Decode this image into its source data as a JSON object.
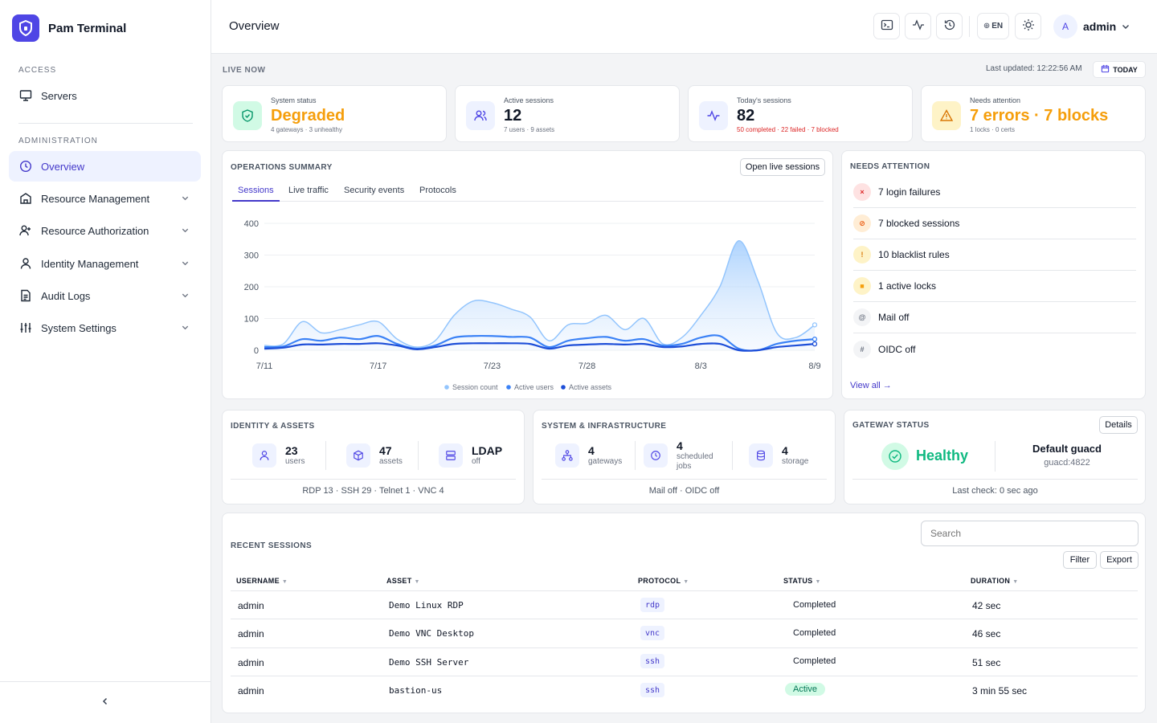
{
  "app": {
    "name": "Pam Terminal"
  },
  "sidebar": {
    "access_label": "ACCESS",
    "admin_label": "ADMINISTRATION",
    "access_items": [
      {
        "label": "Servers",
        "icon": "monitor-icon"
      }
    ],
    "admin_items": [
      {
        "label": "Overview",
        "icon": "clock-icon",
        "active": true
      },
      {
        "label": "Resource Management",
        "icon": "building-icon"
      },
      {
        "label": "Resource Authorization",
        "icon": "user-plus-icon"
      },
      {
        "label": "Identity Management",
        "icon": "user-icon"
      },
      {
        "label": "Audit Logs",
        "icon": "document-icon"
      },
      {
        "label": "System Settings",
        "icon": "sliders-icon"
      }
    ]
  },
  "header": {
    "title": "Overview",
    "lang": "EN",
    "user_initial": "A",
    "user_name": "admin"
  },
  "live": {
    "label": "LIVE NOW",
    "last_updated": "Last updated: 12:22:56 AM",
    "today": "TODAY"
  },
  "stats": [
    {
      "label": "System status",
      "value": "Degraded",
      "sub": "4 gateways · 3 unhealthy"
    },
    {
      "label": "Active sessions",
      "value": "12",
      "sub": "7 users · 9 assets"
    },
    {
      "label": "Today's sessions",
      "value": "82",
      "sub": "50 completed · 22 failed · 7 blocked"
    },
    {
      "label": "Needs attention",
      "value": "7 errors · 7 blocks",
      "sub": "1 locks · 0 certs"
    }
  ],
  "ops": {
    "title": "OPERATIONS SUMMARY",
    "open_btn": "Open live sessions",
    "tabs": [
      "Sessions",
      "Live traffic",
      "Security events",
      "Protocols"
    ]
  },
  "chart_data": {
    "type": "area",
    "title": "",
    "ylim": [
      0,
      400
    ],
    "yticks": [
      "0",
      "100",
      "200",
      "300",
      "400"
    ],
    "xticks": [
      "7/11",
      "7/17",
      "7/23",
      "7/28",
      "8/3",
      "8/9"
    ],
    "x": [
      "7/11",
      "7/12",
      "7/13",
      "7/14",
      "7/15",
      "7/16",
      "7/17",
      "7/18",
      "7/19",
      "7/20",
      "7/21",
      "7/22",
      "7/23",
      "7/24",
      "7/25",
      "7/26",
      "7/27",
      "7/28",
      "7/29",
      "7/30",
      "7/31",
      "8/1",
      "8/2",
      "8/3",
      "8/4",
      "8/5",
      "8/6",
      "8/7",
      "8/8",
      "8/9"
    ],
    "series": [
      {
        "name": "Session count",
        "color": "#93c5fd",
        "values": [
          15,
          20,
          90,
          55,
          65,
          80,
          90,
          35,
          10,
          30,
          110,
          155,
          150,
          130,
          105,
          30,
          80,
          85,
          110,
          65,
          100,
          20,
          40,
          110,
          200,
          345,
          220,
          55,
          40,
          80
        ]
      },
      {
        "name": "Active users",
        "color": "#3b82f6",
        "values": [
          10,
          12,
          35,
          30,
          40,
          35,
          45,
          20,
          5,
          15,
          40,
          45,
          45,
          42,
          40,
          10,
          30,
          38,
          42,
          30,
          35,
          15,
          20,
          40,
          45,
          5,
          0,
          20,
          30,
          35
        ]
      },
      {
        "name": "Active assets",
        "color": "#1d4ed8",
        "values": [
          5,
          8,
          18,
          18,
          20,
          20,
          22,
          15,
          3,
          10,
          20,
          22,
          22,
          22,
          20,
          5,
          15,
          18,
          20,
          18,
          20,
          10,
          12,
          20,
          20,
          0,
          0,
          10,
          15,
          20
        ]
      }
    ]
  },
  "attention": {
    "title": "NEEDS ATTENTION",
    "items": [
      {
        "text": "7 login failures",
        "mark": "×",
        "tone": "red"
      },
      {
        "text": "7 blocked sessions",
        "mark": "⊘",
        "tone": "orange"
      },
      {
        "text": "10 blacklist rules",
        "mark": "!",
        "tone": "amber"
      },
      {
        "text": "1 active locks",
        "mark": "■",
        "tone": "amber"
      },
      {
        "text": "Mail off",
        "mark": "@",
        "tone": "gray"
      },
      {
        "text": "OIDC off",
        "mark": "#",
        "tone": "gray"
      }
    ],
    "view_all": "View all →"
  },
  "identity": {
    "title": "IDENTITY & ASSETS",
    "items": [
      {
        "value": "23",
        "label": "users"
      },
      {
        "value": "47",
        "label": "assets"
      },
      {
        "value": "LDAP",
        "label": "off"
      }
    ],
    "footer": "RDP 13 · SSH 29 · Telnet 1 · VNC 4"
  },
  "system": {
    "title": "SYSTEM & INFRASTRUCTURE",
    "items": [
      {
        "value": "4",
        "label": "gateways"
      },
      {
        "value": "4",
        "label": "scheduled jobs"
      },
      {
        "value": "4",
        "label": "storage"
      }
    ],
    "footer": "Mail off · OIDC off"
  },
  "gateway": {
    "title": "GATEWAY STATUS",
    "details": "Details",
    "status": "Healthy",
    "name": "Default guacd",
    "address": "guacd:4822",
    "last_check": "Last check: 0 sec ago"
  },
  "sessions": {
    "title": "RECENT SESSIONS",
    "search_placeholder": "Search",
    "filter": "Filter",
    "export": "Export",
    "columns": [
      "USERNAME",
      "ASSET",
      "PROTOCOL",
      "STATUS",
      "DURATION"
    ],
    "rows": [
      {
        "username": "admin",
        "asset": "Demo Linux RDP",
        "protocol": "rdp",
        "status": "Completed",
        "duration": "42 sec"
      },
      {
        "username": "admin",
        "asset": "Demo VNC Desktop",
        "protocol": "vnc",
        "status": "Completed",
        "duration": "46 sec"
      },
      {
        "username": "admin",
        "asset": "Demo SSH Server",
        "protocol": "ssh",
        "status": "Completed",
        "duration": "51 sec"
      },
      {
        "username": "admin",
        "asset": "bastion-us",
        "protocol": "ssh",
        "status": "Active",
        "duration": "3 min 55 sec"
      }
    ]
  }
}
